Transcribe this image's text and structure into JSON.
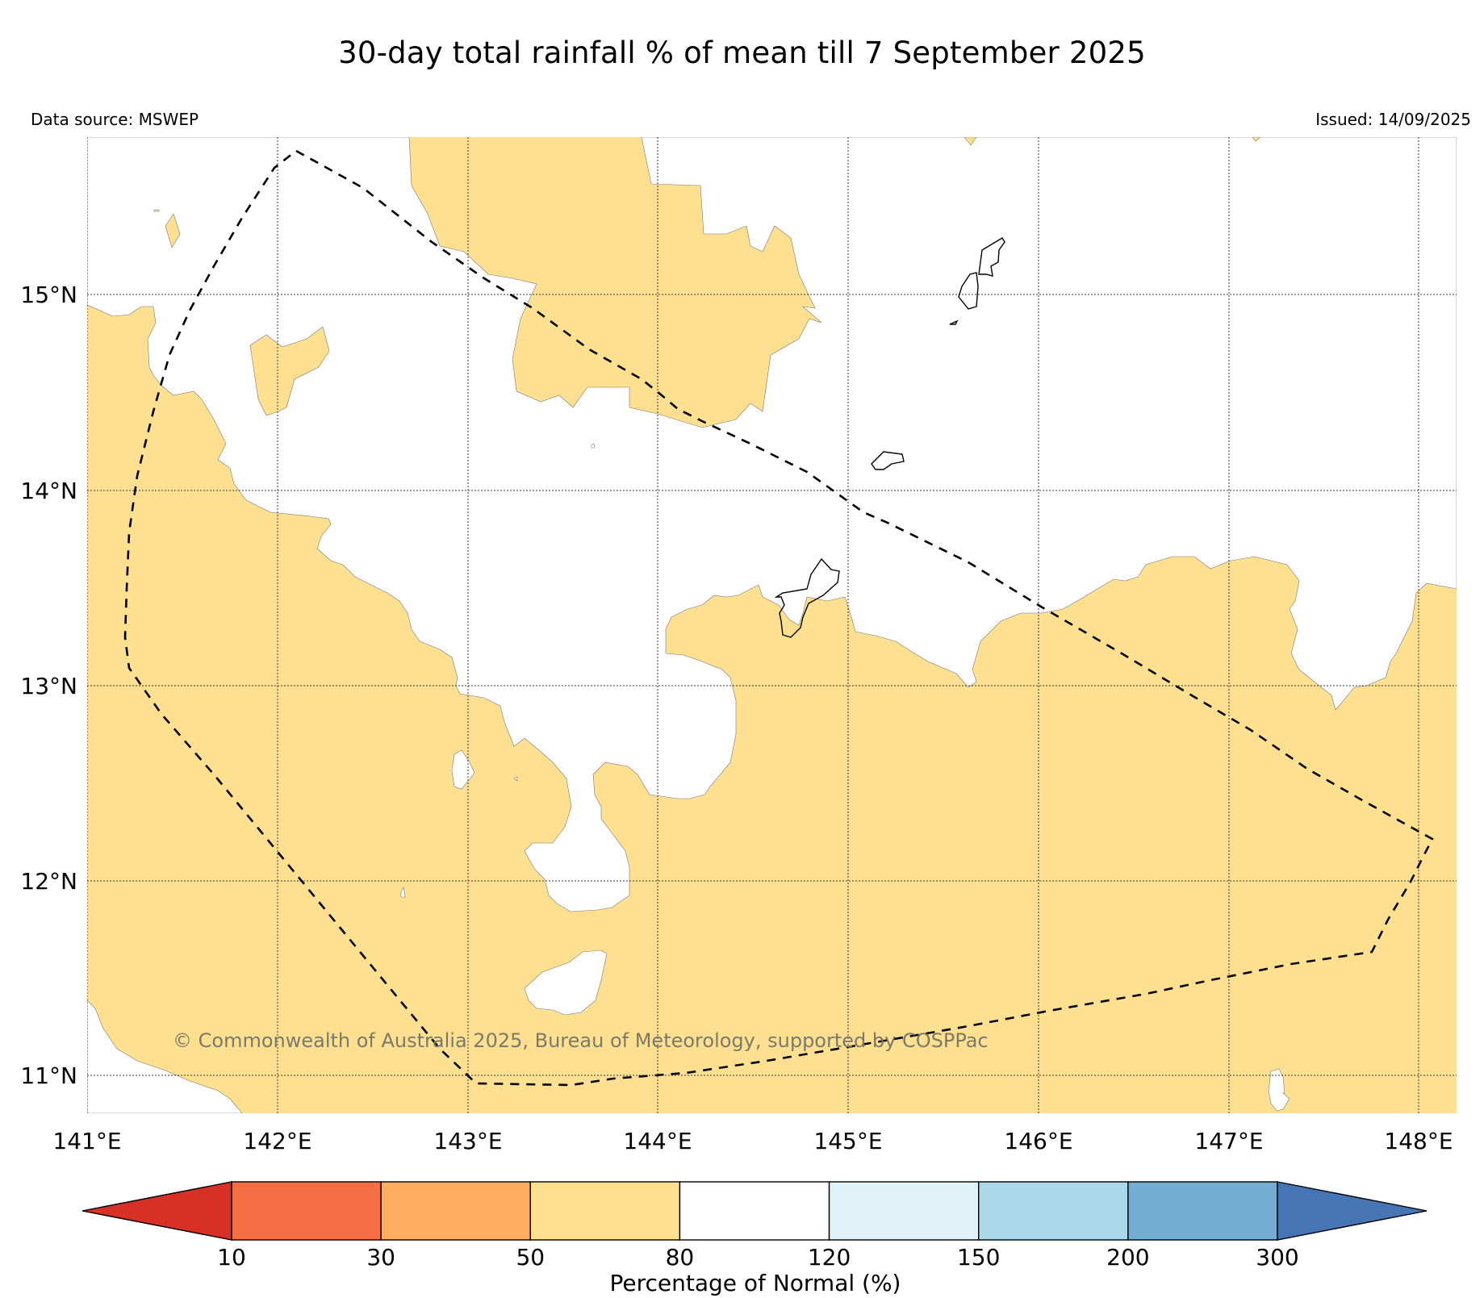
{
  "title": "30-day total rainfall % of mean till 7 September 2025",
  "data_source": "Data source: MSWEP",
  "issued": "Issued: 14/09/2025",
  "copyright": "© Commonwealth of Australia 2025, Bureau of Meteorology, supported by COSPPac",
  "lat_labels": [
    "15°N",
    "14°N",
    "13°N",
    "12°N",
    "11°N"
  ],
  "lon_labels": [
    "141°E",
    "142°E",
    "143°E",
    "144°E",
    "145°E",
    "146°E",
    "147°E",
    "148°E"
  ],
  "colorbar": {
    "title": "Percentage of Normal (%)",
    "ticks": [
      "10",
      "30",
      "50",
      "80",
      "120",
      "150",
      "200",
      "300"
    ],
    "colors": [
      "#d73027",
      "#f46d43",
      "#fdae61",
      "#fee090",
      "#ffffff",
      "#e0f3f8",
      "#abd9e9",
      "#74add1",
      "#4575b4"
    ]
  },
  "colors": {
    "below_normal_50_80": "#fee090",
    "near_normal_80_120": "#ffffff",
    "grid": "#333333",
    "boundary": "#000000"
  }
}
